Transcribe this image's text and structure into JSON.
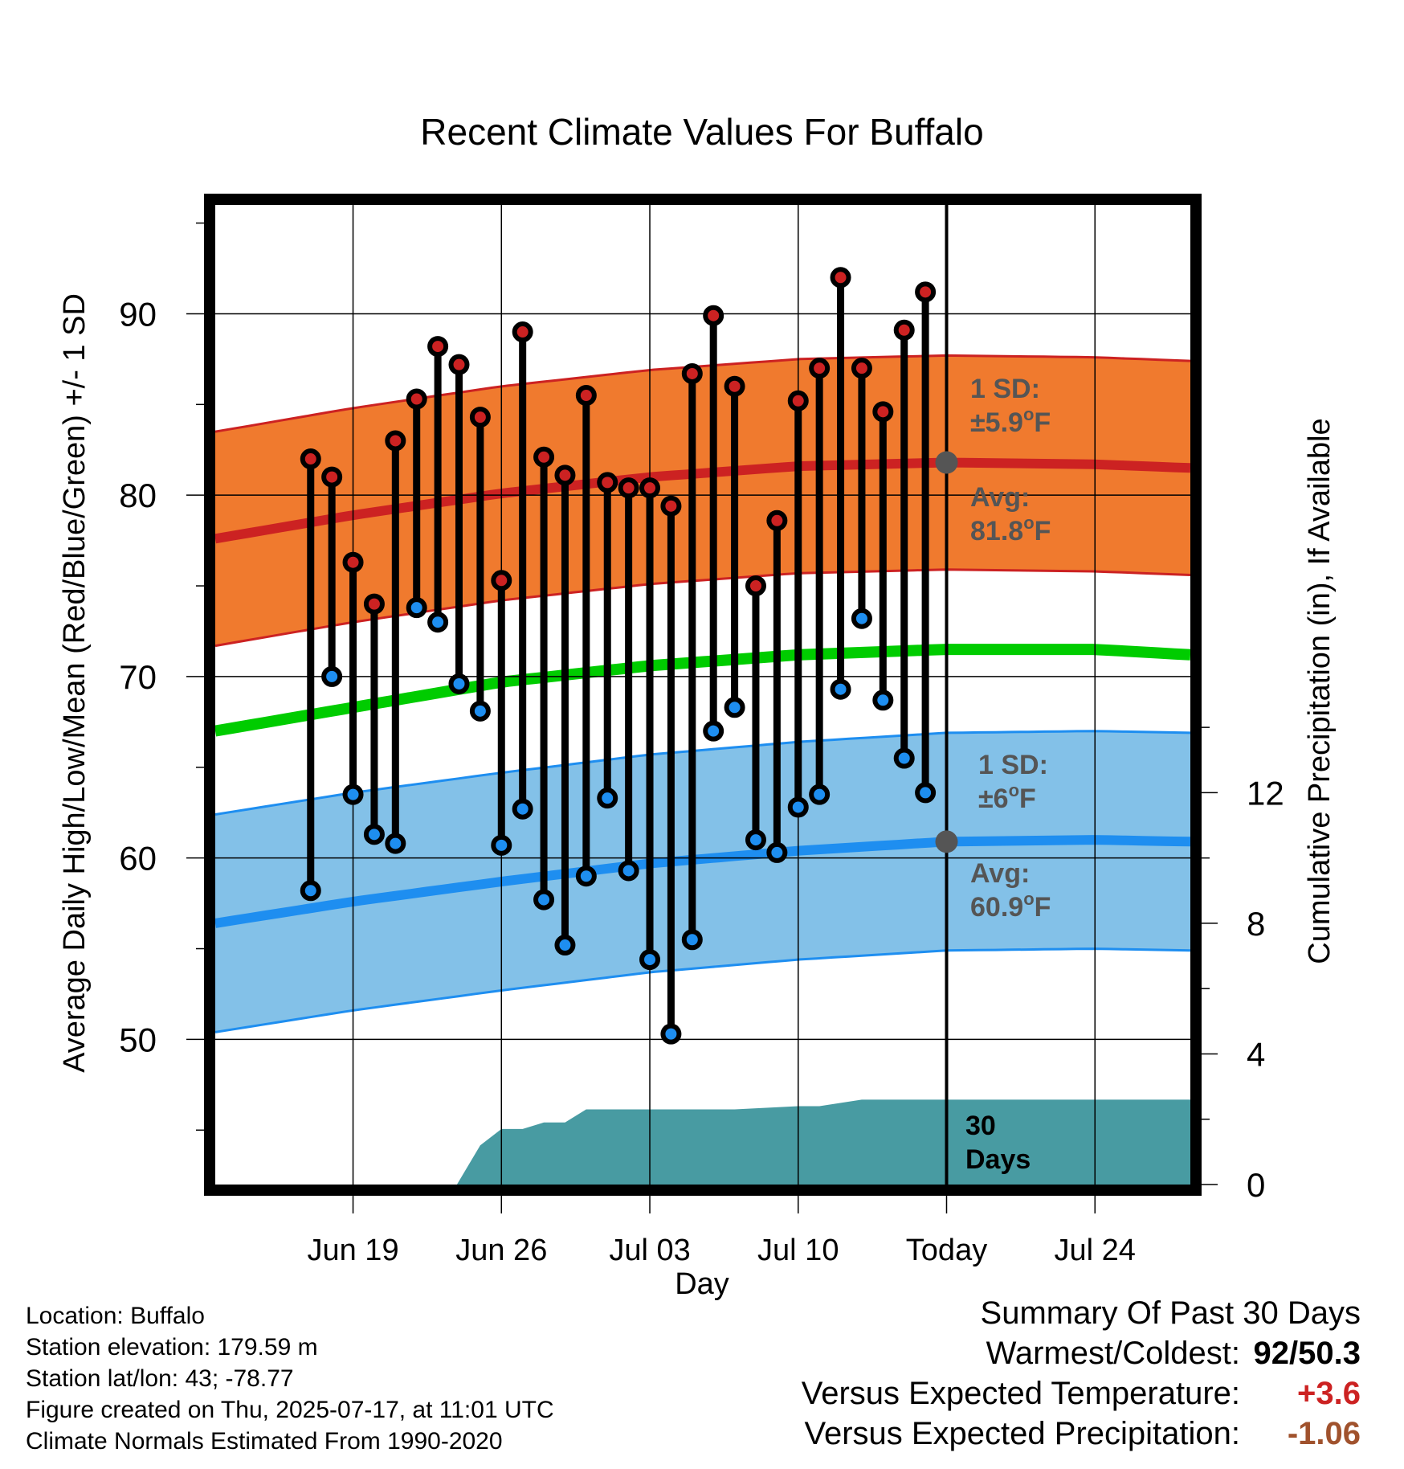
{
  "chart_data": {
    "type": "line",
    "title": "Recent Climate Values For Buffalo",
    "xlabel": "Day",
    "ylabel": "Average Daily High/Low/Mean (Red/Blue/Green) +/- 1 SD",
    "y2label": "Cumulative Precipitation (in), If Available",
    "ylim": [
      42,
      96
    ],
    "y2lim": [
      0,
      30
    ],
    "x_range_days": [
      -34.5,
      11.5
    ],
    "x_ticks": [
      {
        "day": -28,
        "label": "Jun 19"
      },
      {
        "day": -21,
        "label": "Jun 26"
      },
      {
        "day": -14,
        "label": "Jul 03"
      },
      {
        "day": -7,
        "label": "Jul 10"
      },
      {
        "day": 0,
        "label": "Today"
      },
      {
        "day": 7,
        "label": "Jul 24"
      }
    ],
    "y_ticks": [
      50,
      60,
      70,
      80,
      90
    ],
    "y2_ticks": [
      0,
      4,
      8,
      12
    ],
    "grid": true,
    "daily_high": [
      82.0,
      81.0,
      76.3,
      74.0,
      83.0,
      85.3,
      88.2,
      87.2,
      84.3,
      75.3,
      89.0,
      82.1,
      81.1,
      85.5,
      80.7,
      80.4,
      80.4,
      79.4,
      86.7,
      89.9,
      86.0,
      75.0,
      78.6,
      85.2,
      87.0,
      92.0,
      87.0,
      84.6,
      89.1,
      91.2
    ],
    "daily_low": [
      58.2,
      70.0,
      63.5,
      61.3,
      60.8,
      73.8,
      73.0,
      69.6,
      68.1,
      60.7,
      62.7,
      57.7,
      55.2,
      59.0,
      63.3,
      59.3,
      54.4,
      50.3,
      55.5,
      67.0,
      68.3,
      61.0,
      60.3,
      62.8,
      63.5,
      69.3,
      73.2,
      68.7,
      65.5,
      63.6
    ],
    "normal_high": {
      "x": [
        -34.5,
        -28,
        -21,
        -14,
        -7,
        0,
        7,
        11.5
      ],
      "avg": [
        77.6,
        78.9,
        80.1,
        81.0,
        81.6,
        81.8,
        81.7,
        81.5
      ],
      "sd": 5.9
    },
    "normal_mean": {
      "x": [
        -34.5,
        -28,
        -21,
        -14,
        -7,
        0,
        7,
        11.5
      ],
      "avg": [
        67.0,
        68.3,
        69.7,
        70.6,
        71.2,
        71.5,
        71.5,
        71.2
      ]
    },
    "normal_low": {
      "x": [
        -34.5,
        -28,
        -21,
        -14,
        -7,
        0,
        7,
        11.5
      ],
      "avg": [
        56.4,
        57.6,
        58.7,
        59.7,
        60.4,
        60.9,
        61.0,
        60.9
      ],
      "sd": 6.0
    },
    "precip_cumulative": {
      "x": [
        -34.5,
        -23.1,
        -22,
        -21,
        -20,
        -19,
        -18,
        -17,
        -16,
        -14,
        -10,
        -7,
        -6,
        -4,
        0,
        11.5
      ],
      "y": [
        0,
        0,
        1.2,
        1.7,
        1.7,
        1.9,
        1.9,
        2.3,
        2.3,
        2.3,
        2.3,
        2.4,
        2.4,
        2.6,
        2.6,
        2.6
      ]
    },
    "annotations": {
      "high_sd": {
        "line1": "1 SD:",
        "line2": "±5.9",
        "unit": "F",
        "deg": "o"
      },
      "high_avg": {
        "line1": "Avg:",
        "line2": "81.8",
        "unit": "F",
        "deg": "o"
      },
      "low_sd": {
        "line1": "1 SD:",
        "line2": "±6",
        "unit": "F",
        "deg": "o"
      },
      "low_avg": {
        "line1": "Avg:",
        "line2": "60.9",
        "unit": "F",
        "deg": "o"
      },
      "precip_period": {
        "line1": "30",
        "line2": "Days"
      }
    },
    "colors": {
      "high": "#cc2222",
      "high_band": "#f07a2e",
      "low": "#1e8ef0",
      "low_band": "#83c1e8",
      "mean": "#00cc00",
      "precip": "#489ba2",
      "annotation": "#555555",
      "today_marker": "#555555"
    }
  },
  "info": {
    "location": "Location: Buffalo",
    "elevation": "Station elevation: 179.59 m",
    "latlon": "Station lat/lon: 43; -78.77",
    "created": "Figure created on Thu, 2025-07-17, at 11:01 UTC",
    "normals": "Climate Normals Estimated From 1990-2020"
  },
  "summary": {
    "title": "Summary Of Past 30 Days",
    "warmest_label": "Warmest/Coldest:",
    "warmest_value": "92/50.3",
    "temp_label": "Versus Expected Temperature:",
    "temp_value": "+3.6",
    "temp_color": "#cc2222",
    "precip_label": "Versus Expected Precipitation:",
    "precip_value": "-1.06",
    "precip_color": "#a0522d"
  }
}
